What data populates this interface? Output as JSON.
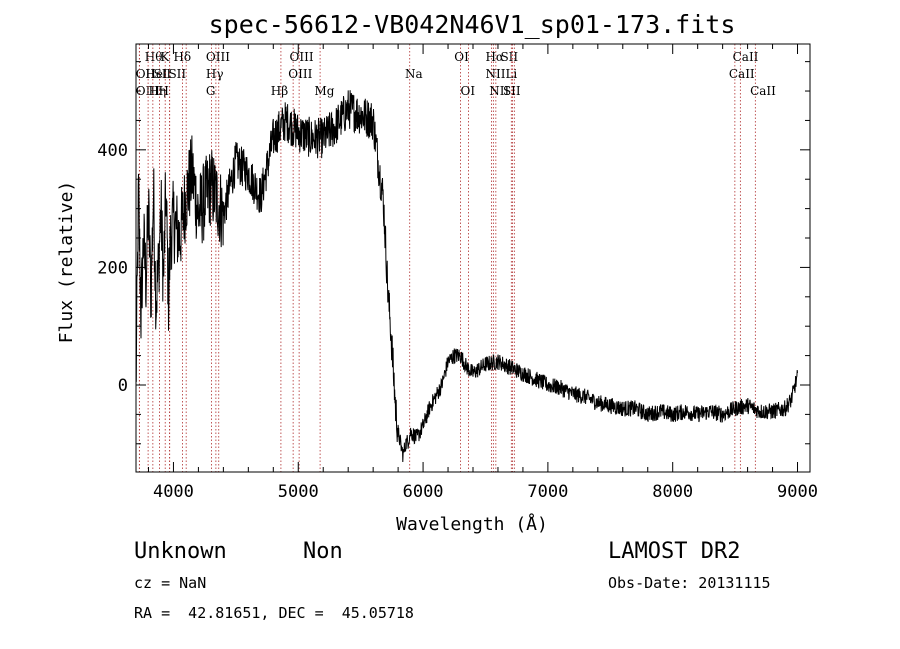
{
  "chart_data": {
    "type": "line",
    "title": "spec-56612-VB042N46V1_sp01-173.fits",
    "xlabel": "Wavelength (Å)",
    "ylabel": "Flux (relative)",
    "xlim": [
      3700,
      9100
    ],
    "ylim": [
      -148,
      580
    ],
    "x_ticks": [
      4000,
      5000,
      6000,
      7000,
      8000,
      9000
    ],
    "y_ticks": [
      0,
      200,
      400
    ],
    "grid": false,
    "series": [
      {
        "x": [
          3700,
          3720,
          3740,
          3760,
          3780,
          3800,
          3820,
          3840,
          3860,
          3880,
          3900,
          3920,
          3940,
          3960,
          3980,
          4000,
          4050,
          4100,
          4150,
          4200,
          4300,
          4400,
          4500,
          4600,
          4700,
          4800,
          4900,
          5000,
          5100,
          5200,
          5300,
          5400,
          5500,
          5600,
          5640,
          5680,
          5700,
          5720,
          5740,
          5760,
          5780,
          5800,
          5820,
          5840,
          5860,
          5880,
          5900,
          5950,
          6000,
          6050,
          6100,
          6150,
          6200,
          6250,
          6300,
          6350,
          6400,
          6500,
          6600,
          6700,
          6800,
          6900,
          7000,
          7100,
          7200,
          7300,
          7400,
          7500,
          7600,
          7700,
          7800,
          7900,
          8000,
          8100,
          8200,
          8300,
          8400,
          8500,
          8600,
          8700,
          8800,
          8900,
          8950,
          9000
        ],
        "y": [
          -10,
          330,
          120,
          250,
          180,
          300,
          150,
          330,
          140,
          200,
          300,
          180,
          330,
          150,
          260,
          280,
          250,
          320,
          360,
          290,
          340,
          290,
          380,
          360,
          320,
          420,
          450,
          430,
          420,
          420,
          440,
          470,
          460,
          450,
          380,
          320,
          240,
          150,
          100,
          30,
          -40,
          -80,
          -100,
          -120,
          -100,
          -95,
          -80,
          -90,
          -70,
          -40,
          -20,
          0,
          40,
          50,
          50,
          30,
          20,
          35,
          40,
          30,
          20,
          10,
          0,
          -5,
          -15,
          -20,
          -30,
          -35,
          -40,
          -40,
          -50,
          -45,
          -50,
          -45,
          -50,
          -45,
          -50,
          -40,
          -35,
          -45,
          -45,
          -40,
          -25,
          15
        ]
      }
    ],
    "line_markers": [
      {
        "name": "OII",
        "x": 3727,
        "label_x": 3698,
        "row": 2
      },
      {
        "name": "OIII",
        "x": 3727,
        "label_x": 3698,
        "row": 3
      },
      {
        "name": "Hθ",
        "x": 3797,
        "label_x": 3770,
        "row": 1
      },
      {
        "name": "Hη",
        "x": 3835,
        "label_x": 3800,
        "row": 3
      },
      {
        "name": "HeI",
        "x": 3889,
        "label_x": 3775,
        "row": 2
      },
      {
        "name": "K",
        "x": 3934,
        "label_x": 3895,
        "row": 1
      },
      {
        "name": "SII",
        "x": 3970,
        "label_x": 3840,
        "row": 2
      },
      {
        "name": "H",
        "x": 3969,
        "label_x": 3880,
        "row": 3
      },
      {
        "name": "Hδ",
        "x": 4102,
        "label_x": 4000,
        "row": 1
      },
      {
        "name": "SII",
        "x": 4072,
        "label_x": 3960,
        "row": 2
      },
      {
        "name": "OIII",
        "x": 4363,
        "label_x": 4260,
        "row": 1
      },
      {
        "name": "Hγ",
        "x": 4340,
        "label_x": 4260,
        "row": 2
      },
      {
        "name": "G",
        "x": 4305,
        "label_x": 4260,
        "row": 3
      },
      {
        "name": "Hβ",
        "x": 4861,
        "label_x": 4780,
        "row": 3
      },
      {
        "name": "OIII",
        "x": 4959,
        "label_x": 4930,
        "row": 1
      },
      {
        "name": "OIII",
        "x": 5007,
        "label_x": 4920,
        "row": 2
      },
      {
        "name": "Mg",
        "x": 5175,
        "label_x": 5130,
        "row": 3
      },
      {
        "name": "Na",
        "x": 5893,
        "label_x": 5855,
        "row": 2
      },
      {
        "name": "OI",
        "x": 6300,
        "label_x": 6250,
        "row": 1
      },
      {
        "name": "OI",
        "x": 6364,
        "label_x": 6300,
        "row": 3
      },
      {
        "name": "Hα",
        "x": 6563,
        "label_x": 6500,
        "row": 1
      },
      {
        "name": "NII",
        "x": 6548,
        "label_x": 6500,
        "row": 2
      },
      {
        "name": "NII",
        "x": 6583,
        "label_x": 6530,
        "row": 3
      },
      {
        "name": "SII",
        "x": 6717,
        "label_x": 6620,
        "row": 1
      },
      {
        "name": "Li",
        "x": 6707,
        "label_x": 6660,
        "row": 2
      },
      {
        "name": "SII",
        "x": 6731,
        "label_x": 6640,
        "row": 3
      },
      {
        "name": "CaII",
        "x": 8498,
        "label_x": 8480,
        "row": 1
      },
      {
        "name": "CaII",
        "x": 8542,
        "label_x": 8450,
        "row": 2
      },
      {
        "name": "CaII",
        "x": 8662,
        "label_x": 8620,
        "row": 3
      }
    ]
  },
  "info": {
    "class": "Unknown",
    "subclass": "Non",
    "survey": "LAMOST DR2",
    "cz": "cz = NaN",
    "obs_date": "Obs-Date: 20131115",
    "coords": "RA =  42.81651, DEC =  45.05718"
  }
}
